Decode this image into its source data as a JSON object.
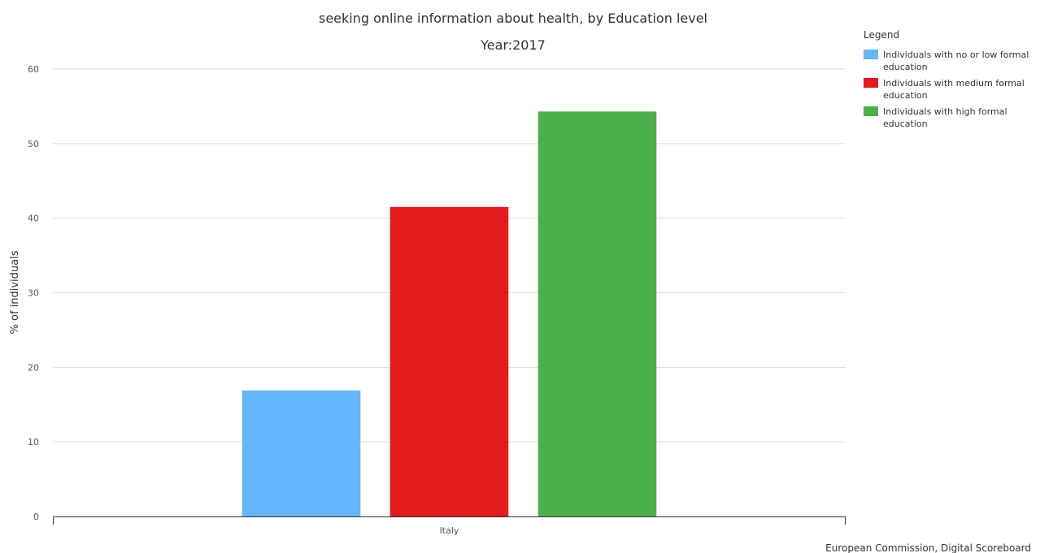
{
  "chart_data": {
    "type": "bar",
    "title": "seeking online information about health, by Education level",
    "subtitle": "Year:2017",
    "xlabel": "",
    "ylabel": "% of individuals",
    "ylim": [
      0,
      60
    ],
    "yticks": [
      0,
      10,
      20,
      30,
      40,
      50,
      60
    ],
    "categories": [
      "Italy"
    ],
    "grid": true,
    "legend_title": "Legend",
    "legend_position": "top-right",
    "series": [
      {
        "name": "Individuals with no or low formal education",
        "values": [
          16.9
        ],
        "color": "#64b5fc"
      },
      {
        "name": "Individuals with medium formal education",
        "values": [
          41.5
        ],
        "color": "#e41a1c"
      },
      {
        "name": "Individuals with high formal education",
        "values": [
          54.3
        ],
        "color": "#4daf4a"
      }
    ],
    "credit": "European Commission, Digital Scoreboard"
  }
}
